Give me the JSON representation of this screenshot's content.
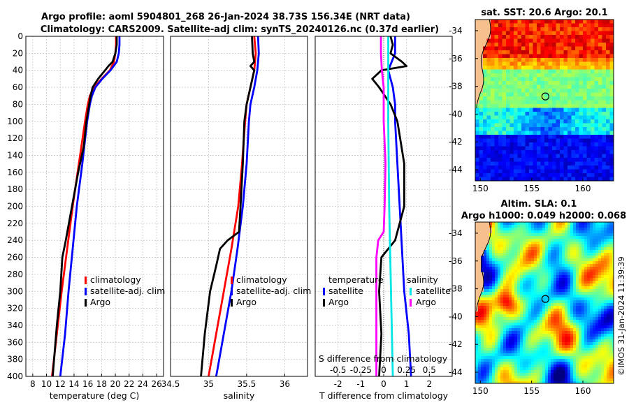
{
  "figure": {
    "title_line1": "Argo profile: aoml 5904801_268 26-Jan-2024 38.73S 156.34E (NRT data)",
    "title_line2": "Climatology: CARS2009. Satellite-adj clim: synTS_20240126.nc (0.37d earlier)",
    "credit": "©IMOS 31-Jan-2024 11:39:39",
    "colors": {
      "climatology": "#ff0000",
      "satellite": "#0000ff",
      "argo": "#000000",
      "sat_salinity": "#00e5e5",
      "argo_salinity": "#ff00ff"
    }
  },
  "chart_data": [
    {
      "type": "line",
      "name": "temperature-profile",
      "xlabel": "temperature (deg C)",
      "xlim": [
        7,
        27
      ],
      "xticks": [
        "8",
        "10",
        "12",
        "14",
        "16",
        "18",
        "20",
        "22",
        "24",
        "26"
      ],
      "ylim": [
        0,
        400
      ],
      "yticks": [
        "0",
        "20",
        "40",
        "60",
        "80",
        "100",
        "120",
        "140",
        "160",
        "180",
        "200",
        "220",
        "240",
        "260",
        "280",
        "300",
        "320",
        "340",
        "360",
        "380",
        "400"
      ],
      "legend": [
        "climatology",
        "satellite-adj. clim",
        "Argo"
      ],
      "series": [
        {
          "name": "climatology",
          "depth": [
            0,
            10,
            20,
            30,
            40,
            50,
            60,
            70,
            80,
            100,
            150,
            200,
            250,
            300,
            350,
            400
          ],
          "values": [
            20.1,
            20.1,
            20.0,
            19.8,
            19.2,
            18.0,
            16.9,
            16.3,
            16.0,
            15.6,
            14.7,
            13.8,
            13.0,
            12.2,
            11.5,
            10.8
          ]
        },
        {
          "name": "satellite-adj. clim",
          "depth": [
            0,
            10,
            20,
            30,
            40,
            50,
            60,
            70,
            80,
            100,
            150,
            200,
            250,
            300,
            350,
            400
          ],
          "values": [
            20.6,
            20.6,
            20.5,
            20.2,
            19.3,
            18.1,
            17.1,
            16.6,
            16.3,
            15.9,
            15.2,
            14.4,
            13.8,
            13.2,
            12.7,
            12.0
          ]
        },
        {
          "name": "Argo",
          "depth": [
            0,
            10,
            20,
            30,
            35,
            40,
            50,
            60,
            70,
            80,
            100,
            130,
            160,
            200,
            240,
            260,
            300,
            340,
            380,
            400
          ],
          "values": [
            20.2,
            20.2,
            20.0,
            19.6,
            19.0,
            18.5,
            17.5,
            16.7,
            16.4,
            16.2,
            15.8,
            15.4,
            14.6,
            13.7,
            12.8,
            12.3,
            12.0,
            11.5,
            11.1,
            10.9
          ]
        }
      ]
    },
    {
      "type": "line",
      "name": "salinity-profile",
      "xlabel": "salinity",
      "xlim": [
        34.5,
        36.3
      ],
      "xticks": [
        "34.5",
        "35",
        "35.5",
        "36"
      ],
      "ylim": [
        0,
        400
      ],
      "legend": [
        "climatology",
        "satellite-adj. clim",
        "Argo"
      ],
      "series": [
        {
          "name": "climatology",
          "depth": [
            0,
            20,
            40,
            60,
            80,
            100,
            150,
            200,
            250,
            300,
            350,
            400
          ],
          "values": [
            35.6,
            35.62,
            35.6,
            35.55,
            35.5,
            35.48,
            35.44,
            35.39,
            35.3,
            35.2,
            35.1,
            35.0
          ]
        },
        {
          "name": "satellite-adj. clim",
          "depth": [
            0,
            20,
            40,
            60,
            80,
            100,
            150,
            200,
            250,
            300,
            350,
            400
          ],
          "values": [
            35.65,
            35.66,
            35.64,
            35.6,
            35.55,
            35.53,
            35.5,
            35.45,
            35.38,
            35.3,
            35.2,
            35.1
          ]
        },
        {
          "name": "Argo",
          "depth": [
            0,
            20,
            30,
            35,
            40,
            60,
            80,
            100,
            150,
            200,
            230,
            240,
            250,
            270,
            300,
            350,
            400
          ],
          "values": [
            35.57,
            35.58,
            35.6,
            35.55,
            35.6,
            35.55,
            35.5,
            35.47,
            35.45,
            35.42,
            35.4,
            35.25,
            35.15,
            35.1,
            35.02,
            34.95,
            34.9
          ]
        }
      ]
    },
    {
      "type": "line",
      "name": "difference-profile",
      "xlabel": "T difference from climatology",
      "xlabel_top": "S difference from climatology",
      "xlim": [
        -3,
        3
      ],
      "xticks": [
        "-2",
        "-1",
        "0",
        "1",
        "2"
      ],
      "xticks_top": [
        "-0.5",
        "-0.25",
        "0",
        "0.25",
        "0.5"
      ],
      "ylim": [
        0,
        400
      ],
      "legend_temperature": {
        "title": "temperature",
        "items": [
          "satellite",
          "Argo"
        ]
      },
      "legend_salinity": {
        "title": "salinity",
        "items": [
          "satellite",
          "Argo"
        ]
      },
      "series": [
        {
          "name": "temperature satellite",
          "depth": [
            0,
            20,
            40,
            60,
            80,
            100,
            150,
            200,
            250,
            300,
            350,
            400
          ],
          "values": [
            0.5,
            0.5,
            0.2,
            0.4,
            0.5,
            0.5,
            0.6,
            0.7,
            0.8,
            0.9,
            1.1,
            1.2
          ]
        },
        {
          "name": "temperature Argo",
          "depth": [
            0,
            10,
            20,
            30,
            35,
            40,
            50,
            60,
            80,
            100,
            150,
            200,
            240,
            260,
            300,
            350,
            400
          ],
          "values": [
            0.3,
            0.4,
            0.3,
            0.8,
            1.0,
            -0.1,
            -0.5,
            -0.2,
            0.3,
            0.6,
            0.9,
            0.9,
            0.5,
            -0.1,
            -0.2,
            -0.1,
            -0.2
          ]
        },
        {
          "name": "salinity satellite",
          "depth": [
            0,
            50,
            100,
            200,
            300,
            400
          ],
          "values": [
            0.05,
            0.05,
            0.05,
            0.06,
            0.08,
            0.1
          ]
        },
        {
          "name": "salinity Argo",
          "depth": [
            0,
            20,
            40,
            60,
            100,
            150,
            200,
            230,
            240,
            260,
            300,
            350,
            400
          ],
          "values": [
            -0.03,
            -0.03,
            -0.02,
            0.0,
            0.0,
            0.02,
            0.01,
            0.0,
            -0.06,
            -0.08,
            -0.08,
            -0.08,
            -0.08
          ]
        }
      ]
    }
  ],
  "maps": {
    "sst": {
      "title": "sat. SST: 20.6 Argo: 20.1",
      "xticks": [
        "150",
        "155",
        "160"
      ],
      "yticks": [
        "-34",
        "-36",
        "-38",
        "-40",
        "-42",
        "-44"
      ],
      "lon_range": [
        149.5,
        163
      ],
      "lat_range": [
        -44.8,
        -33.2
      ],
      "float_lon": 156.34,
      "float_lat": -38.73
    },
    "sla": {
      "title_line1": "Altim. SLA: 0.1",
      "title_line2": "Argo h1000: 0.049 h2000: 0.068",
      "xticks": [
        "150",
        "155",
        "160"
      ],
      "yticks": [
        "-34",
        "-36",
        "-38",
        "-40",
        "-42",
        "-44"
      ],
      "lon_range": [
        149.5,
        163
      ],
      "lat_range": [
        -44.8,
        -33.2
      ],
      "float_lon": 156.34,
      "float_lat": -38.73
    }
  }
}
